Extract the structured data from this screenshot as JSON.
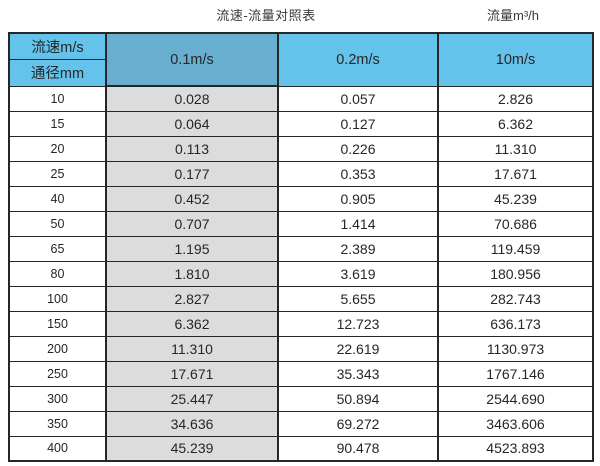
{
  "titles": {
    "main": "流速-流量对照表",
    "right": "流量m³/h"
  },
  "colors": {
    "header_blue": "#63c3ea",
    "header_dark_blue": "#68aece",
    "highlight_gray": "#dcdcdc",
    "border": "#262626",
    "text": "#262626"
  },
  "chart_data": {
    "type": "table",
    "title": "流速-流量对照表",
    "unit_label": "流量m³/h",
    "row_header_top": "流速m/s",
    "row_header_bottom": "通径mm",
    "columns": [
      "0.1m/s",
      "0.2m/s",
      "10m/s"
    ],
    "highlighted_column": "0.1m/s",
    "rows": [
      {
        "diameter": "10",
        "values": [
          "0.028",
          "0.057",
          "2.826"
        ]
      },
      {
        "diameter": "15",
        "values": [
          "0.064",
          "0.127",
          "6.362"
        ]
      },
      {
        "diameter": "20",
        "values": [
          "0.113",
          "0.226",
          "11.310"
        ]
      },
      {
        "diameter": "25",
        "values": [
          "0.177",
          "0.353",
          "17.671"
        ]
      },
      {
        "diameter": "40",
        "values": [
          "0.452",
          "0.905",
          "45.239"
        ]
      },
      {
        "diameter": "50",
        "values": [
          "0.707",
          "1.414",
          "70.686"
        ]
      },
      {
        "diameter": "65",
        "values": [
          "1.195",
          "2.389",
          "119.459"
        ]
      },
      {
        "diameter": "80",
        "values": [
          "1.810",
          "3.619",
          "180.956"
        ]
      },
      {
        "diameter": "100",
        "values": [
          "2.827",
          "5.655",
          "282.743"
        ]
      },
      {
        "diameter": "150",
        "values": [
          "6.362",
          "12.723",
          "636.173"
        ]
      },
      {
        "diameter": "200",
        "values": [
          "11.310",
          "22.619",
          "1130.973"
        ]
      },
      {
        "diameter": "250",
        "values": [
          "17.671",
          "35.343",
          "1767.146"
        ]
      },
      {
        "diameter": "300",
        "values": [
          "25.447",
          "50.894",
          "2544.690"
        ]
      },
      {
        "diameter": "350",
        "values": [
          "34.636",
          "69.272",
          "3463.606"
        ]
      },
      {
        "diameter": "400",
        "values": [
          "45.239",
          "90.478",
          "4523.893"
        ]
      }
    ]
  }
}
